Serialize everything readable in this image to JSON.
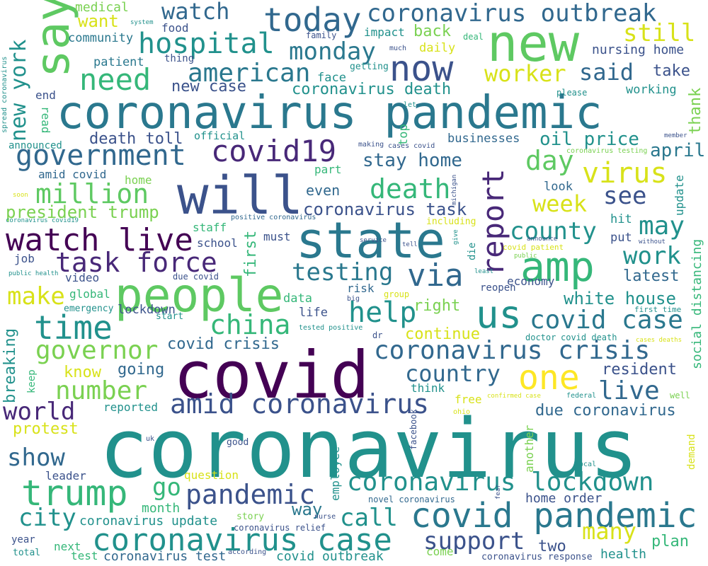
{
  "words": [
    {
      "text": "coronavirus",
      "color": "#21918c"
    },
    {
      "text": "covid",
      "color": "#440154"
    },
    {
      "text": "coronavirus pandemic",
      "color": "#2a788e"
    },
    {
      "text": "will",
      "color": "#3b528b"
    },
    {
      "text": "state",
      "color": "#2a788e"
    },
    {
      "text": "new",
      "color": "#5ec962"
    },
    {
      "text": "people",
      "color": "#5ec962"
    },
    {
      "text": "say",
      "color": "#5ec962"
    },
    {
      "text": "amp",
      "color": "#35b779"
    },
    {
      "text": "now",
      "color": "#3b528b"
    },
    {
      "text": "today",
      "color": "#31688e"
    },
    {
      "text": "coronavirus outbreak",
      "color": "#31688e"
    },
    {
      "text": "us",
      "color": "#21918c"
    },
    {
      "text": "one",
      "color": "#fde725"
    },
    {
      "text": "covid pandemic",
      "color": "#2a788e"
    },
    {
      "text": "watch live",
      "color": "#440154"
    },
    {
      "text": "trump",
      "color": "#35b779"
    },
    {
      "text": "coronavirus case",
      "color": "#21918c"
    },
    {
      "text": "time",
      "color": "#21918c"
    },
    {
      "text": "report",
      "color": "#482878"
    },
    {
      "text": "via",
      "color": "#31688e"
    },
    {
      "text": "coronavirus crisis",
      "color": "#31688e"
    },
    {
      "text": "covid19",
      "color": "#482878"
    },
    {
      "text": "government",
      "color": "#31688e"
    },
    {
      "text": "coronavirus lockdown",
      "color": "#21918c"
    },
    {
      "text": "amid coronavirus",
      "color": "#3b528b"
    },
    {
      "text": "hospital",
      "color": "#21918c"
    },
    {
      "text": "need",
      "color": "#35b779"
    },
    {
      "text": "task force",
      "color": "#482878"
    },
    {
      "text": "help",
      "color": "#21918c"
    },
    {
      "text": "covid case",
      "color": "#2a788e"
    },
    {
      "text": "pandemic",
      "color": "#3b528b"
    },
    {
      "text": "virus",
      "color": "#d8e219"
    },
    {
      "text": "million",
      "color": "#5ec962"
    },
    {
      "text": "china",
      "color": "#35b779"
    },
    {
      "text": "governor",
      "color": "#7ad151"
    },
    {
      "text": "number",
      "color": "#7ad151"
    },
    {
      "text": "watch",
      "color": "#31688e"
    },
    {
      "text": "still",
      "color": "#d8e219"
    },
    {
      "text": "monday",
      "color": "#2a788e"
    },
    {
      "text": "american",
      "color": "#2a788e"
    },
    {
      "text": "worker",
      "color": "#d8e219"
    },
    {
      "text": "said",
      "color": "#31688e"
    },
    {
      "text": "testing",
      "color": "#2a788e"
    },
    {
      "text": "day",
      "color": "#5ec962"
    },
    {
      "text": "death",
      "color": "#35b779"
    },
    {
      "text": "see",
      "color": "#3b528b"
    },
    {
      "text": "may",
      "color": "#21918c"
    },
    {
      "text": "week",
      "color": "#d8e219"
    },
    {
      "text": "county",
      "color": "#21918c"
    },
    {
      "text": "work",
      "color": "#21918c"
    },
    {
      "text": "live",
      "color": "#31688e"
    },
    {
      "text": "country",
      "color": "#31688e"
    },
    {
      "text": "city",
      "color": "#21918c"
    },
    {
      "text": "many",
      "color": "#d8e219"
    },
    {
      "text": "support",
      "color": "#3b528b"
    },
    {
      "text": "call",
      "color": "#21918c"
    },
    {
      "text": "world",
      "color": "#482878"
    },
    {
      "text": "show",
      "color": "#31688e"
    },
    {
      "text": "make",
      "color": "#d8e219"
    },
    {
      "text": "new york",
      "color": "#21918c"
    },
    {
      "text": "go",
      "color": "#35b779"
    },
    {
      "text": "want",
      "color": "#d8e219"
    },
    {
      "text": "president trump",
      "color": "#7ad151"
    },
    {
      "text": "death toll",
      "color": "#3b528b"
    },
    {
      "text": "stay home",
      "color": "#31688e"
    },
    {
      "text": "oil price",
      "color": "#21918c"
    },
    {
      "text": "april",
      "color": "#2a788e"
    },
    {
      "text": "coronavirus task",
      "color": "#3b528b"
    },
    {
      "text": "coronavirus death",
      "color": "#21918c"
    },
    {
      "text": "new case",
      "color": "#3b528b"
    },
    {
      "text": "take",
      "color": "#3b528b"
    },
    {
      "text": "nursing home",
      "color": "#3b528b"
    },
    {
      "text": "back",
      "color": "#7ad151"
    },
    {
      "text": "white house",
      "color": "#21918c"
    },
    {
      "text": "latest",
      "color": "#31688e"
    },
    {
      "text": "due coronavirus",
      "color": "#31688e"
    },
    {
      "text": "resident",
      "color": "#3b528b"
    },
    {
      "text": "covid crisis",
      "color": "#31688e"
    },
    {
      "text": "continue",
      "color": "#d8e219"
    },
    {
      "text": "right",
      "color": "#7ad151"
    },
    {
      "text": "going",
      "color": "#31688e"
    },
    {
      "text": "know",
      "color": "#d8e219"
    },
    {
      "text": "protest",
      "color": "#d8e219"
    },
    {
      "text": "plan",
      "color": "#35b779"
    },
    {
      "text": "two",
      "color": "#3b528b"
    },
    {
      "text": "health",
      "color": "#21918c"
    },
    {
      "text": "coronavirus update",
      "color": "#21918c"
    },
    {
      "text": "coronavirus test",
      "color": "#31688e"
    },
    {
      "text": "covid outbreak",
      "color": "#21918c"
    },
    {
      "text": "home order",
      "color": "#3b528b"
    },
    {
      "text": "way",
      "color": "#2a788e"
    },
    {
      "text": "month",
      "color": "#35b779"
    },
    {
      "text": "breaking",
      "color": "#21918c"
    },
    {
      "text": "social distancing",
      "color": "#35b779"
    },
    {
      "text": "thank",
      "color": "#7ad151"
    },
    {
      "text": "update",
      "color": "#21918c"
    },
    {
      "text": "medical",
      "color": "#7ad151"
    },
    {
      "text": "community",
      "color": "#2a788e"
    },
    {
      "text": "patient",
      "color": "#2a788e"
    },
    {
      "text": "food",
      "color": "#3b528b"
    },
    {
      "text": "thing",
      "color": "#3b528b"
    },
    {
      "text": "end",
      "color": "#3b528b"
    },
    {
      "text": "read",
      "color": "#35b779"
    },
    {
      "text": "amid covid",
      "color": "#31688e"
    },
    {
      "text": "home",
      "color": "#7ad151"
    },
    {
      "text": "official",
      "color": "#21918c"
    },
    {
      "text": "announced",
      "color": "#21918c"
    },
    {
      "text": "part",
      "color": "#35b779"
    },
    {
      "text": "even",
      "color": "#31688e"
    },
    {
      "text": "look",
      "color": "#31688e"
    },
    {
      "text": "top",
      "color": "#35b779"
    },
    {
      "text": "working",
      "color": "#21918c"
    },
    {
      "text": "businesses",
      "color": "#31688e"
    },
    {
      "text": "face",
      "color": "#21918c"
    },
    {
      "text": "impact",
      "color": "#21918c"
    },
    {
      "text": "daily",
      "color": "#d8e219"
    },
    {
      "text": "getting",
      "color": "#21918c"
    },
    {
      "text": "staff",
      "color": "#35b779"
    },
    {
      "text": "school",
      "color": "#3b528b"
    },
    {
      "text": "must",
      "color": "#3b528b"
    },
    {
      "text": "first",
      "color": "#35b779"
    },
    {
      "text": "job",
      "color": "#3b528b"
    },
    {
      "text": "video",
      "color": "#3b528b"
    },
    {
      "text": "global",
      "color": "#35b779"
    },
    {
      "text": "emergency",
      "color": "#21918c"
    },
    {
      "text": "lockdown",
      "color": "#3b528b"
    },
    {
      "text": "start",
      "color": "#21918c"
    },
    {
      "text": "data",
      "color": "#35b779"
    },
    {
      "text": "life",
      "color": "#3b528b"
    },
    {
      "text": "risk",
      "color": "#31688e"
    },
    {
      "text": "economy",
      "color": "#3b528b"
    },
    {
      "text": "reopen",
      "color": "#3b528b"
    },
    {
      "text": "hit",
      "color": "#21918c"
    },
    {
      "text": "put",
      "color": "#3b528b"
    },
    {
      "text": "keep",
      "color": "#35b779"
    },
    {
      "text": "reported",
      "color": "#21918c"
    },
    {
      "text": "free",
      "color": "#d8e219"
    },
    {
      "text": "think",
      "color": "#21918c"
    },
    {
      "text": "leader",
      "color": "#3b528b"
    },
    {
      "text": "question",
      "color": "#d8e219"
    },
    {
      "text": "good",
      "color": "#3b528b"
    },
    {
      "text": "employee",
      "color": "#21918c"
    },
    {
      "text": "story",
      "color": "#7ad151"
    },
    {
      "text": "year",
      "color": "#3b528b"
    },
    {
      "text": "next",
      "color": "#35b779"
    },
    {
      "text": "total",
      "color": "#21918c"
    },
    {
      "text": "test",
      "color": "#35b779"
    },
    {
      "text": "come",
      "color": "#7ad151"
    },
    {
      "text": "another",
      "color": "#7ad151"
    },
    {
      "text": "facebook",
      "color": "#3b528b"
    },
    {
      "text": "demand",
      "color": "#d8e219"
    },
    {
      "text": "coronavirus response",
      "color": "#3b528b"
    },
    {
      "text": "die",
      "color": "#21918c"
    },
    {
      "text": "including",
      "color": "#d8e219"
    },
    {
      "text": "positive coronavirus",
      "color": "#31688e"
    },
    {
      "text": "coronavirus covid19",
      "color": "#21918c"
    },
    {
      "text": "public health",
      "color": "#21918c"
    },
    {
      "text": "due covid",
      "color": "#3b528b"
    },
    {
      "text": "dr",
      "color": "#3b528b"
    },
    {
      "text": "tested positive",
      "color": "#21918c"
    },
    {
      "text": "group",
      "color": "#d8e219"
    },
    {
      "text": "big",
      "color": "#3b528b"
    },
    {
      "text": "first time",
      "color": "#21918c"
    },
    {
      "text": "covid death",
      "color": "#21918c"
    },
    {
      "text": "doctor",
      "color": "#21918c"
    },
    {
      "text": "cases deaths",
      "color": "#d8e219"
    },
    {
      "text": "confirmed case",
      "color": "#d8e219"
    },
    {
      "text": "federal",
      "color": "#21918c"
    },
    {
      "text": "well",
      "color": "#7ad151"
    },
    {
      "text": "local",
      "color": "#21918c"
    },
    {
      "text": "fear",
      "color": "#3b528b"
    },
    {
      "text": "ohio",
      "color": "#d8e219"
    },
    {
      "text": "uk",
      "color": "#3b528b"
    },
    {
      "text": "nurse",
      "color": "#3b528b"
    },
    {
      "text": "novel coronavirus",
      "color": "#31688e"
    },
    {
      "text": "coronavirus relief",
      "color": "#3b528b"
    },
    {
      "text": "according",
      "color": "#3b528b"
    },
    {
      "text": "system",
      "color": "#21918c"
    },
    {
      "text": "family",
      "color": "#3b528b"
    },
    {
      "text": "much",
      "color": "#3b528b"
    },
    {
      "text": "deal",
      "color": "#35b779"
    },
    {
      "text": "please",
      "color": "#21918c"
    },
    {
      "text": "let",
      "color": "#21918c"
    },
    {
      "text": "member",
      "color": "#3b528b"
    },
    {
      "text": "coronavirus testing",
      "color": "#7ad151"
    },
    {
      "text": "making",
      "color": "#3b528b"
    },
    {
      "text": "cases covid",
      "color": "#3b528b"
    },
    {
      "text": "michigan",
      "color": "#3b528b"
    },
    {
      "text": "announce",
      "color": "#3b528b"
    },
    {
      "text": "without",
      "color": "#3b528b"
    },
    {
      "text": "covid patient",
      "color": "#d8e219"
    },
    {
      "text": "public",
      "color": "#7ad151"
    },
    {
      "text": "least",
      "color": "#21918c"
    },
    {
      "text": "give",
      "color": "#21918c"
    },
    {
      "text": "service",
      "color": "#3b528b"
    },
    {
      "text": "tell",
      "color": "#3b528b"
    },
    {
      "text": "soon",
      "color": "#d8e219"
    },
    {
      "text": "spread coronavirus",
      "color": "#21918c"
    }
  ]
}
